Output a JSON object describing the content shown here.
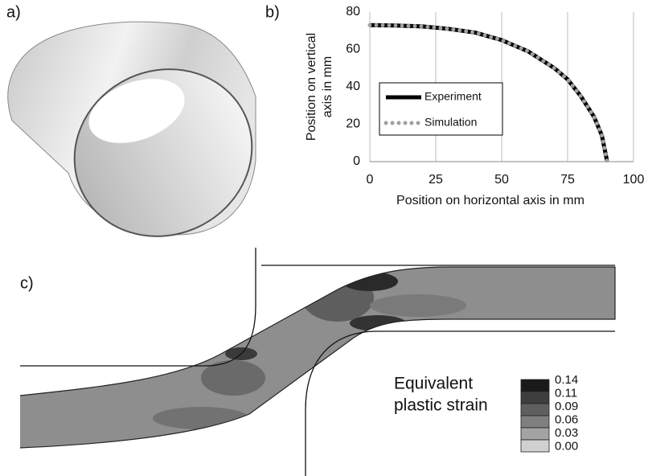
{
  "panel_labels": [
    "a)",
    "b)",
    "c)"
  ],
  "chart_data": {
    "type": "line",
    "xlabel": "Position on horizontal axis in mm",
    "ylabel": [
      "Position on vertical",
      "axis in mm"
    ],
    "x": [
      0,
      10,
      20,
      30,
      40,
      50,
      60,
      70,
      75,
      80,
      85,
      88,
      90
    ],
    "series": [
      {
        "name": "Experiment",
        "color": "#000000",
        "values": [
          73,
          72.8,
          72.3,
          71,
          69,
          65,
          59,
          50,
          44,
          35,
          24,
          14,
          0
        ]
      },
      {
        "name": "Simulation",
        "color": "#a0a0a0",
        "values": [
          73,
          72.8,
          72.3,
          71,
          69,
          65,
          59,
          50,
          44,
          35,
          24,
          14,
          0
        ]
      }
    ],
    "xlim": [
      0,
      100
    ],
    "xticks": [
      0,
      25,
      50,
      75,
      100
    ],
    "ylim": [
      0,
      80
    ],
    "yticks": [
      0,
      20,
      40,
      60,
      80
    ],
    "grid": "x",
    "legend": "left"
  },
  "contour_legend": {
    "title": [
      "Equivalent",
      "plastic strain"
    ],
    "levels": [
      "0.14",
      "0.11",
      "0.09",
      "0.06",
      "0.03",
      "0.00"
    ]
  }
}
